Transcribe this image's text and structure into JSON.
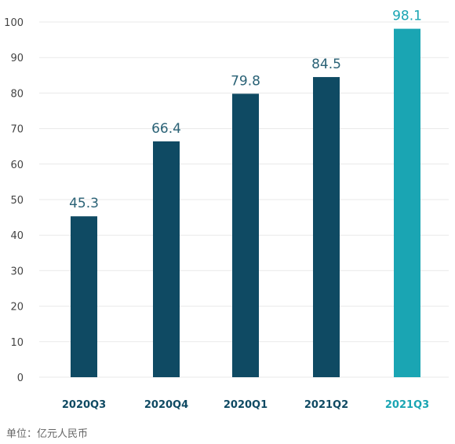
{
  "chart_data": {
    "type": "bar",
    "categories": [
      "2020Q3",
      "2020Q4",
      "2020Q1",
      "2021Q2",
      "2021Q3"
    ],
    "values": [
      45.3,
      66.4,
      79.8,
      84.5,
      98.1
    ],
    "value_labels": [
      "45.3",
      "66.4",
      "79.8",
      "84.5",
      "98.1"
    ],
    "title": "",
    "xlabel": "",
    "ylabel": "",
    "ylim": [
      0,
      100
    ],
    "yticks": [
      0,
      10,
      20,
      30,
      40,
      50,
      60,
      70,
      80,
      90,
      100
    ],
    "grid": true,
    "highlight_index": 4
  },
  "footer": {
    "unit_note": "单位：亿元人民币"
  },
  "colors": {
    "bar": "#0f4a63",
    "highlight": "#1aa5b3",
    "label": "#2a6276",
    "highlight_label": "#1aa5b3",
    "grid": "#e9e9e9",
    "axis_text": "#444444"
  }
}
